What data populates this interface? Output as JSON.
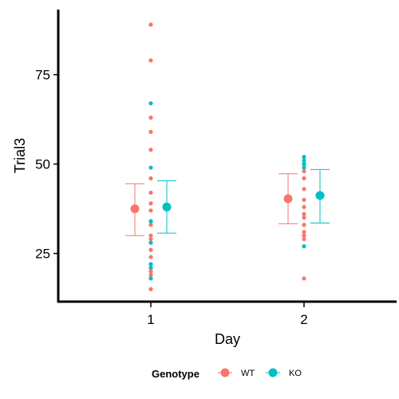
{
  "chart_data": {
    "type": "scatter",
    "title": "",
    "xlabel": "Day",
    "ylabel": "Trial3",
    "categories": [
      "1",
      "2"
    ],
    "yticks": [
      25,
      50,
      75
    ],
    "ylim": [
      11.5,
      92.5
    ],
    "grid": false,
    "legend": {
      "title": "Genotype",
      "position": "bottom"
    },
    "series": [
      {
        "name": "WT",
        "color": "#F8766D",
        "points": [
          {
            "x": "1",
            "values": [
              89,
              79,
              63,
              59,
              54,
              46,
              42,
              39,
              37,
              34,
              33,
              30,
              29,
              26,
              24,
              22,
              20,
              19,
              15
            ]
          },
          {
            "x": "2",
            "values": [
              50,
              48,
              46,
              43,
              40,
              38,
              36,
              35,
              33,
              31,
              30,
              29,
              18
            ]
          }
        ],
        "summary": [
          {
            "x": "1",
            "mean": 37.5,
            "lower": 30.0,
            "upper": 44.5
          },
          {
            "x": "2",
            "mean": 40.3,
            "lower": 33.3,
            "upper": 47.3
          }
        ]
      },
      {
        "name": "KO",
        "color": "#00BFC4",
        "points": [
          {
            "x": "1",
            "values": [
              67,
              49,
              34,
              28,
              22,
              21,
              18
            ]
          },
          {
            "x": "2",
            "values": [
              52,
              51,
              50,
              49,
              27
            ]
          }
        ],
        "summary": [
          {
            "x": "1",
            "mean": 38.0,
            "lower": 30.7,
            "upper": 45.3
          },
          {
            "x": "2",
            "mean": 41.2,
            "lower": 33.5,
            "upper": 48.5
          }
        ]
      }
    ]
  }
}
